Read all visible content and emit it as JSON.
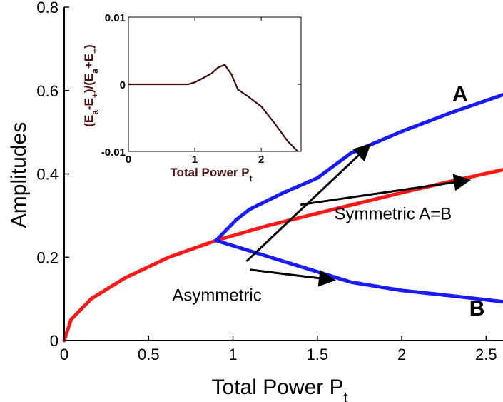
{
  "chart_data": [
    {
      "type": "line",
      "xlabel": "Total Power",
      "xlabel_subscript_symbol": "P",
      "xlabel_subscript": "t",
      "ylabel": "Amplitudes",
      "xlim": [
        0,
        2.6
      ],
      "ylim": [
        0,
        0.8
      ],
      "xticks": [
        0,
        0.5,
        1,
        1.5,
        2,
        2.5
      ],
      "xtick_labels": [
        "0",
        "0.5",
        "1",
        "1.5",
        "2",
        "2.5"
      ],
      "yticks": [
        0,
        0.2,
        0.4,
        0.6,
        0.8
      ],
      "ytick_labels": [
        "0",
        "0.2",
        "0.4",
        "0.6",
        "0.8"
      ],
      "grid": false,
      "series": [
        {
          "name": "Symmetric A=B",
          "color": "#ff1a1a",
          "points": [
            [
              0,
              0
            ],
            [
              0.04,
              0.05
            ],
            [
              0.16,
              0.1
            ],
            [
              0.36,
              0.15
            ],
            [
              0.62,
              0.2
            ],
            [
              0.9,
              0.24
            ],
            [
              1.2,
              0.275
            ],
            [
              1.6,
              0.315
            ],
            [
              2.0,
              0.355
            ],
            [
              2.3,
              0.383
            ],
            [
              2.6,
              0.41
            ]
          ]
        },
        {
          "name": "A",
          "color": "#1a1aff",
          "points": [
            [
              0.9,
              0.24
            ],
            [
              0.96,
              0.265
            ],
            [
              1.02,
              0.29
            ],
            [
              1.1,
              0.315
            ],
            [
              1.3,
              0.355
            ],
            [
              1.5,
              0.39
            ],
            [
              1.7,
              0.45
            ],
            [
              2.0,
              0.502
            ],
            [
              2.3,
              0.548
            ],
            [
              2.6,
              0.59
            ]
          ]
        },
        {
          "name": "B",
          "color": "#1a1aff",
          "points": [
            [
              0.9,
              0.24
            ],
            [
              1.1,
              0.215
            ],
            [
              1.3,
              0.19
            ],
            [
              1.5,
              0.165
            ],
            [
              1.7,
              0.14
            ],
            [
              2.0,
              0.12
            ],
            [
              2.3,
              0.107
            ],
            [
              2.6,
              0.093
            ]
          ]
        }
      ],
      "annotations": [
        {
          "text": "A",
          "bold": true,
          "x": 2.3,
          "y": 0.575
        },
        {
          "text": "B",
          "bold": true,
          "x": 2.4,
          "y": 0.06
        },
        {
          "text": "Symmetric  A=B",
          "bold": false,
          "x": 1.6,
          "y": 0.29
        },
        {
          "text": "Asymmetric",
          "bold": false,
          "x": 0.64,
          "y": 0.095
        }
      ],
      "arrows": [
        {
          "from": [
            1.4,
            0.326
          ],
          "to": [
            2.4,
            0.385
          ]
        },
        {
          "from": [
            1.08,
            0.19
          ],
          "to": [
            1.81,
            0.47
          ]
        },
        {
          "from": [
            1.1,
            0.17
          ],
          "to": [
            1.6,
            0.145
          ]
        }
      ],
      "inset": {
        "type": "line",
        "ylabel": "(E_a - E_+)/(E_a + E_+)",
        "ylabel_parts": [
          "(E",
          "a",
          "-E",
          "+",
          ")/(E",
          "a",
          "+E",
          "+",
          ")"
        ],
        "xlabel": "Total Power",
        "xlabel_subscript_symbol": "P",
        "xlabel_subscript": "t",
        "xlim": [
          0,
          2.6
        ],
        "ylim": [
          -0.01,
          0.01
        ],
        "xticks": [
          0,
          1,
          2
        ],
        "xtick_labels": [
          "0",
          "1",
          "2"
        ],
        "yticks": [
          -0.01,
          0,
          0.01
        ],
        "ytick_labels": [
          "-0.01",
          "0",
          "0.01"
        ],
        "series": [
          {
            "color": "#3d0a0a",
            "points": [
              [
                0,
                0
              ],
              [
                0.5,
                0
              ],
              [
                0.9,
                0
              ],
              [
                1.0,
                0.0003
              ],
              [
                1.1,
                0.0008
              ],
              [
                1.25,
                0.0016
              ],
              [
                1.35,
                0.0025
              ],
              [
                1.45,
                0.0029
              ],
              [
                1.55,
                0.0015
              ],
              [
                1.65,
                -0.0008
              ],
              [
                1.8,
                -0.0018
              ],
              [
                2.0,
                -0.0033
              ],
              [
                2.2,
                -0.0058
              ],
              [
                2.4,
                -0.0085
              ],
              [
                2.55,
                -0.01
              ]
            ]
          }
        ]
      }
    }
  ]
}
